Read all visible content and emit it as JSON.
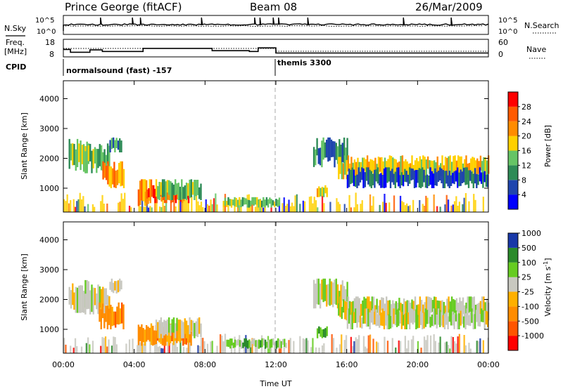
{
  "header": {
    "station": "Prince George (fitACF)",
    "beam": "Beam 08",
    "date": "26/Mar/2009"
  },
  "noise_panel": {
    "left_label": "N.Sky",
    "right_label": "N.Search",
    "left_ticks": [
      "10^5",
      "10^0"
    ],
    "right_ticks": [
      "10^5",
      "10^0"
    ]
  },
  "freq_panel": {
    "left_label_line1": "Freq.",
    "left_label_line2": "[MHz]",
    "right_label": "Nave",
    "left_ticks": [
      "18",
      "8"
    ],
    "right_ticks": [
      "60",
      "0"
    ]
  },
  "cpid": {
    "label": "CPID",
    "programs": [
      "normalsound (fast) -157",
      "themis 3300"
    ],
    "switch_time_hours": 12
  },
  "colors": {
    "power_scale": [
      "#0000ff",
      "#1f45ae",
      "#2e8b57",
      "#66c466",
      "#ffd000",
      "#ff8c00",
      "#ff5a00",
      "#ff0000"
    ],
    "velocity_scale": [
      "#ff0000",
      "#ff5500",
      "#ff8c00",
      "#ffb000",
      "#c8c8c0",
      "#66cc22",
      "#2a8a2a",
      "#1838a8"
    ],
    "ground_scatter": "#bebebe"
  },
  "chart_data": [
    {
      "type": "heatmap",
      "name": "power",
      "xlabel": "",
      "ylabel": "Slant Range [km]",
      "xlim": [
        0,
        24
      ],
      "ylim": [
        200,
        4600
      ],
      "yticks": [
        "1000",
        "2000",
        "3000",
        "4000"
      ],
      "colorbar_label": "Power [dB]",
      "colorbar_ticks": [
        "4",
        "8",
        "12",
        "16",
        "20",
        "24",
        "28"
      ],
      "regions": [
        {
          "t0": 0.3,
          "t1": 1.4,
          "r0": 1550,
          "r1": 2650,
          "level": 3
        },
        {
          "t0": 1.2,
          "t1": 2.6,
          "r0": 1500,
          "r1": 2500,
          "level": 3
        },
        {
          "t0": 2.2,
          "t1": 3.4,
          "r0": 1000,
          "r1": 1900,
          "level": 5
        },
        {
          "t0": 2.6,
          "t1": 3.3,
          "r0": 2200,
          "r1": 2700,
          "level": 2
        },
        {
          "t0": 4.2,
          "t1": 5.0,
          "r0": 400,
          "r1": 1300,
          "level": 5
        },
        {
          "t0": 4.6,
          "t1": 7.2,
          "r0": 500,
          "r1": 1100,
          "level": 6
        },
        {
          "t0": 5.2,
          "t1": 7.8,
          "r0": 600,
          "r1": 1300,
          "level": 3
        },
        {
          "t0": 9.0,
          "t1": 12.2,
          "r0": 350,
          "r1": 700,
          "level": 3
        },
        {
          "t0": 14.1,
          "t1": 16.0,
          "r0": 1700,
          "r1": 2700,
          "level": 2
        },
        {
          "t0": 15.5,
          "t1": 24.0,
          "r0": 1300,
          "r1": 2100,
          "level": 4
        },
        {
          "t0": 16.0,
          "t1": 24.0,
          "r0": 1000,
          "r1": 1700,
          "level": 1
        },
        {
          "t0": 14.3,
          "t1": 14.9,
          "r0": 700,
          "r1": 1100,
          "level": 4
        }
      ]
    },
    {
      "type": "heatmap",
      "name": "velocity",
      "xlabel": "Time UT",
      "ylabel": "Slant Range [km]",
      "xlim": [
        0,
        24
      ],
      "ylim": [
        200,
        4600
      ],
      "xticks": [
        "00:00",
        "04:00",
        "08:00",
        "12:00",
        "16:00",
        "20:00",
        "00:00"
      ],
      "yticks": [
        "1000",
        "2000",
        "3000",
        "4000"
      ],
      "colorbar_label": "Velocity [m s-1]",
      "colorbar_ticks": [
        "-1000",
        "-500",
        "-100",
        "-25",
        "25",
        "100",
        "500",
        "1000"
      ],
      "regions": [
        {
          "t0": 0.3,
          "t1": 1.4,
          "r0": 1550,
          "r1": 2650,
          "level": 4
        },
        {
          "t0": 1.2,
          "t1": 2.6,
          "r0": 1500,
          "r1": 2500,
          "level": 4
        },
        {
          "t0": 2.0,
          "t1": 3.4,
          "r0": 1000,
          "r1": 1900,
          "level": 2
        },
        {
          "t0": 2.6,
          "t1": 3.3,
          "r0": 2200,
          "r1": 2700,
          "level": 4
        },
        {
          "t0": 4.2,
          "t1": 7.2,
          "r0": 450,
          "r1": 1200,
          "level": 2
        },
        {
          "t0": 5.2,
          "t1": 7.8,
          "r0": 700,
          "r1": 1400,
          "level": 4
        },
        {
          "t0": 9.2,
          "t1": 12.6,
          "r0": 350,
          "r1": 700,
          "level": 5
        },
        {
          "t0": 14.1,
          "t1": 16.0,
          "r0": 1700,
          "r1": 2700,
          "level": 4
        },
        {
          "t0": 15.5,
          "t1": 24.0,
          "r0": 1300,
          "r1": 2100,
          "level": 4
        },
        {
          "t0": 16.0,
          "t1": 24.0,
          "r0": 1000,
          "r1": 1700,
          "level": 4
        },
        {
          "t0": 14.3,
          "t1": 14.9,
          "r0": 700,
          "r1": 1100,
          "level": 5
        }
      ]
    }
  ]
}
